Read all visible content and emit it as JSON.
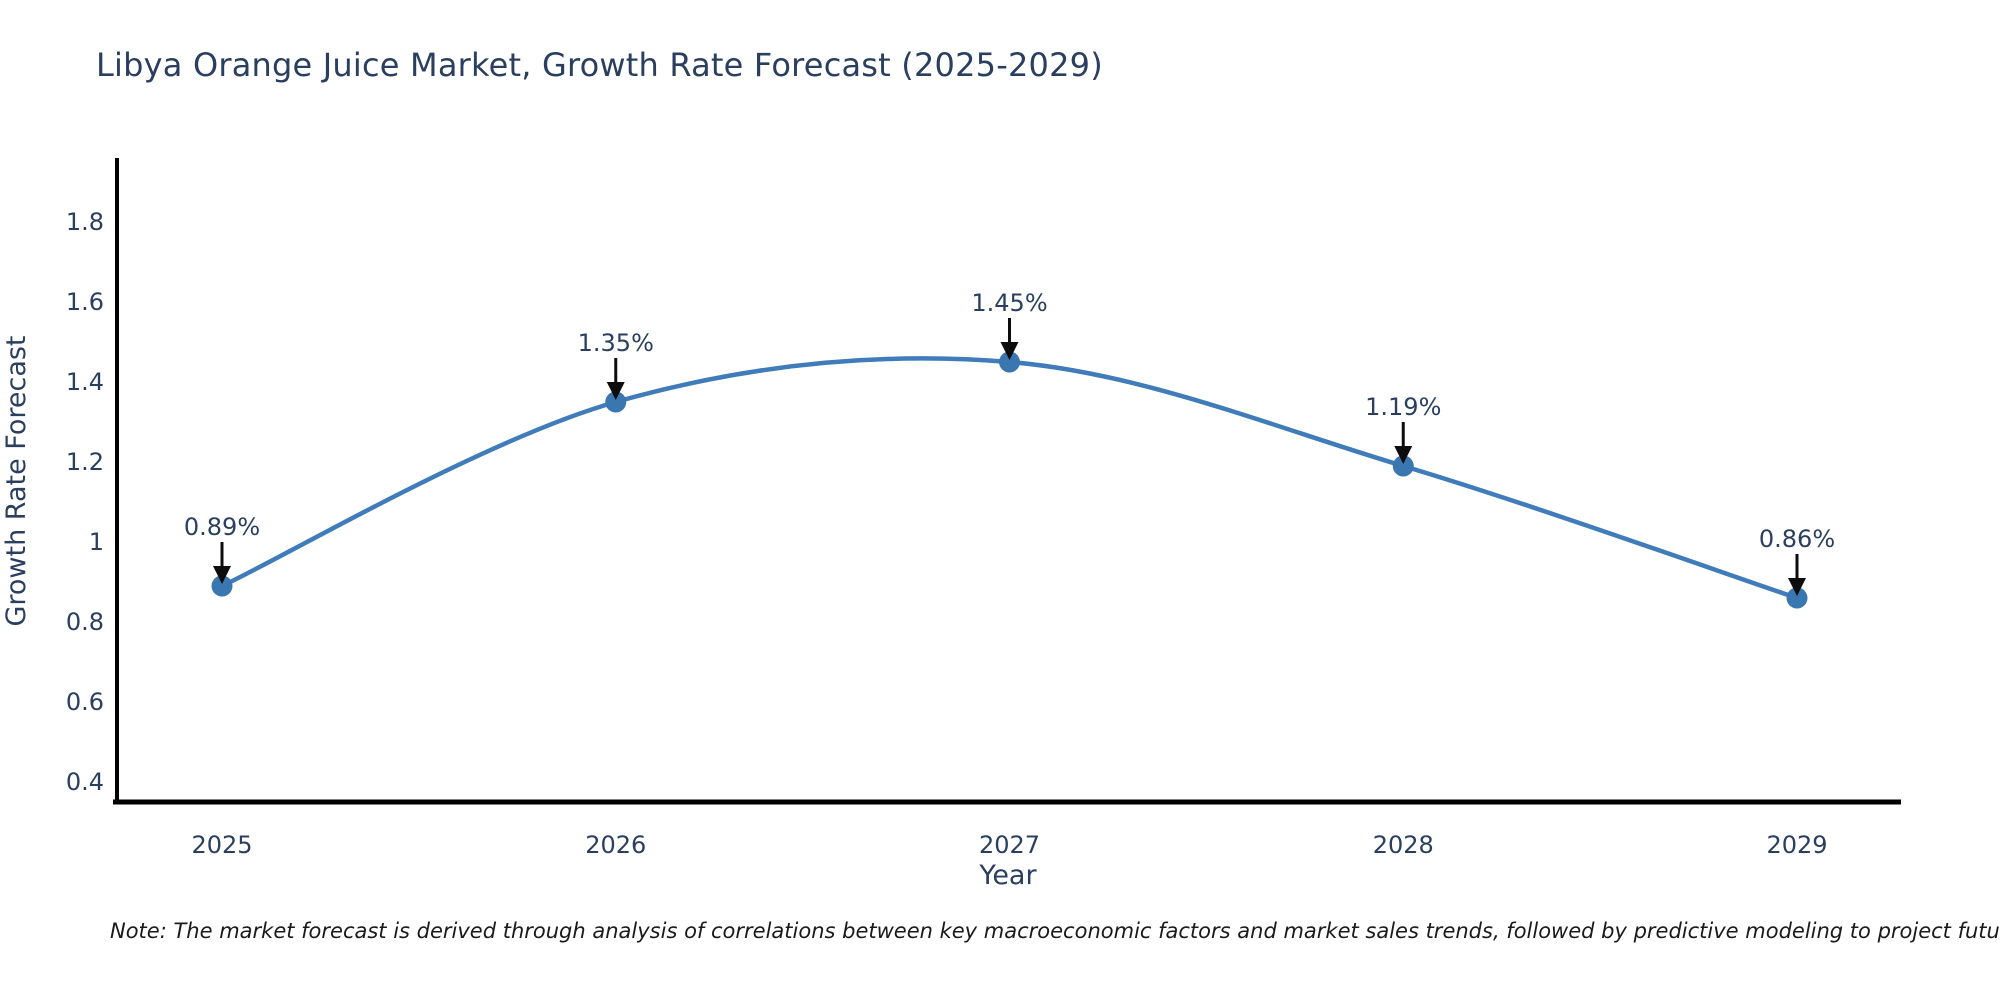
{
  "title": "Libya Orange Juice Market, Growth Rate Forecast (2025-2029)",
  "note": "Note: The market forecast is derived through analysis of correlations between key macroeconomic factors and market sales trends, followed by predictive modeling to project future sales",
  "chart_data": {
    "type": "line",
    "title": "Libya Orange Juice Market, Growth Rate Forecast (2025-2029)",
    "categories": [
      "2025",
      "2026",
      "2027",
      "2028",
      "2029"
    ],
    "values": [
      0.89,
      1.35,
      1.45,
      1.19,
      0.86
    ],
    "point_labels": [
      "0.89%",
      "1.35%",
      "1.45%",
      "1.19%",
      "0.86%"
    ],
    "xlabel": "Year",
    "ylabel": "Growth Rate Forecast",
    "yticks": [
      1.8,
      1.6,
      1.4,
      1.2,
      1,
      0.8,
      0.6,
      0.4
    ],
    "ylim": [
      0.35,
      1.96
    ],
    "line_shape": "spline",
    "grid": false,
    "legend_position": "none",
    "annotation_style": "value labels with downward arrows",
    "colors": {
      "line": "#3f7cb9",
      "marker": "#3a76b0",
      "axis": "#000000",
      "text": "#2a3f5f",
      "arrow": "#0d0d0d",
      "note_text": "#1a1a1a",
      "background": "#ffffff"
    }
  }
}
